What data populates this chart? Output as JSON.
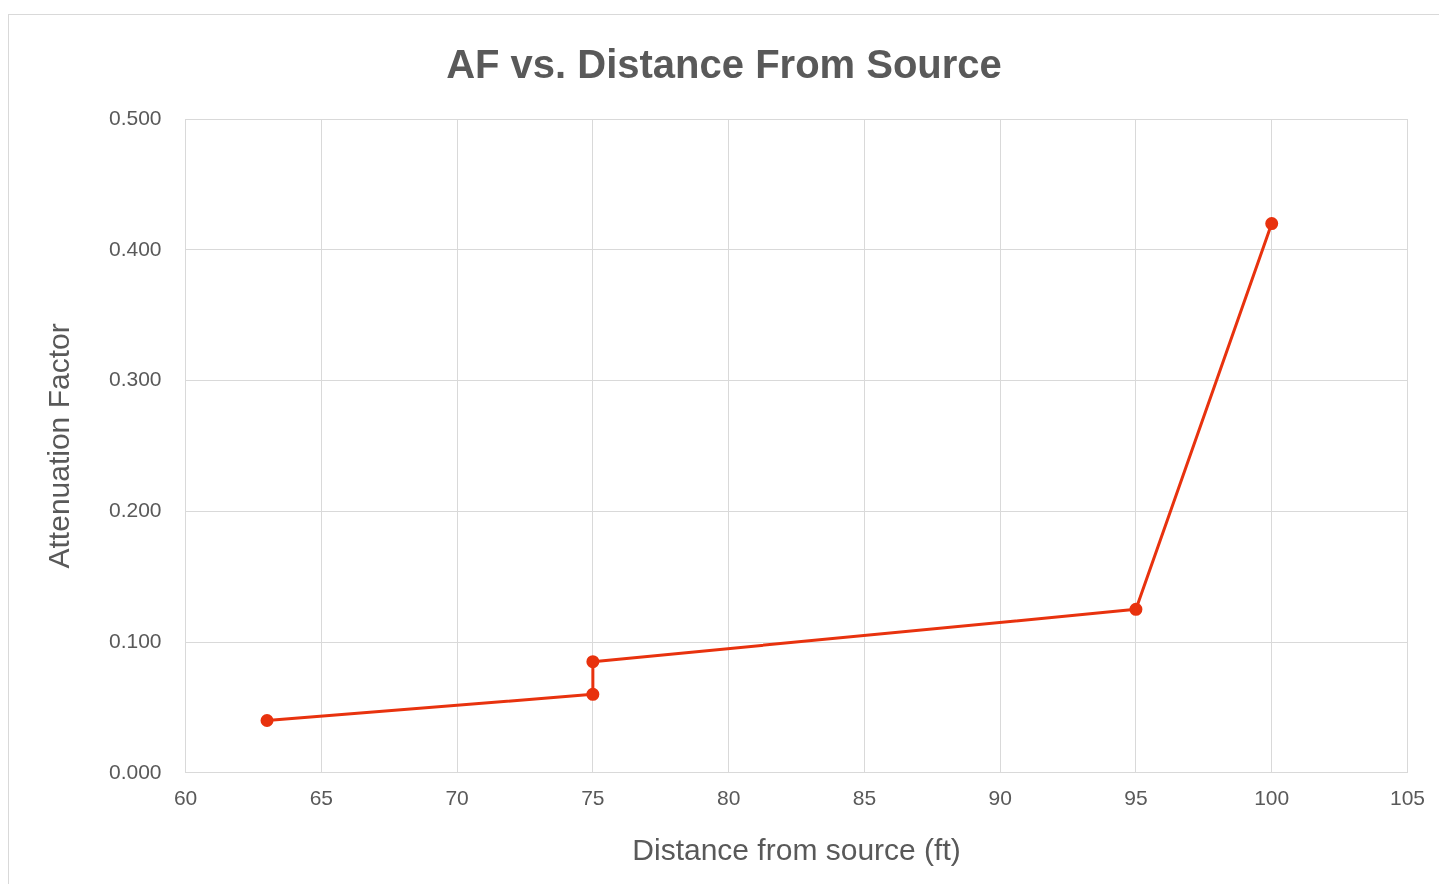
{
  "chart_data": {
    "type": "line",
    "title": "AF vs. Distance From Source",
    "xlabel": "Distance from source (ft)",
    "ylabel": "Attenuation Factor",
    "x": [
      63,
      75,
      75,
      95,
      100
    ],
    "series": [
      {
        "color": "#e8320e",
        "values": [
          0.04,
          0.06,
          0.085,
          0.125,
          0.42
        ]
      }
    ],
    "xlim": [
      60,
      105
    ],
    "xticks": [
      60,
      65,
      70,
      75,
      80,
      85,
      90,
      95,
      100,
      105
    ],
    "ylim": [
      0,
      0.5
    ],
    "yticks": [
      {
        "value": 0,
        "label": "0.000"
      },
      {
        "value": 0.1,
        "label": "0.100"
      },
      {
        "value": 0.2,
        "label": "0.200"
      },
      {
        "value": 0.3,
        "label": "0.300"
      },
      {
        "value": 0.4,
        "label": "0.400"
      },
      {
        "value": 0.5,
        "label": "0.500"
      }
    ],
    "grid": true,
    "legend": false,
    "marker": "circle",
    "line_style": "solid"
  }
}
